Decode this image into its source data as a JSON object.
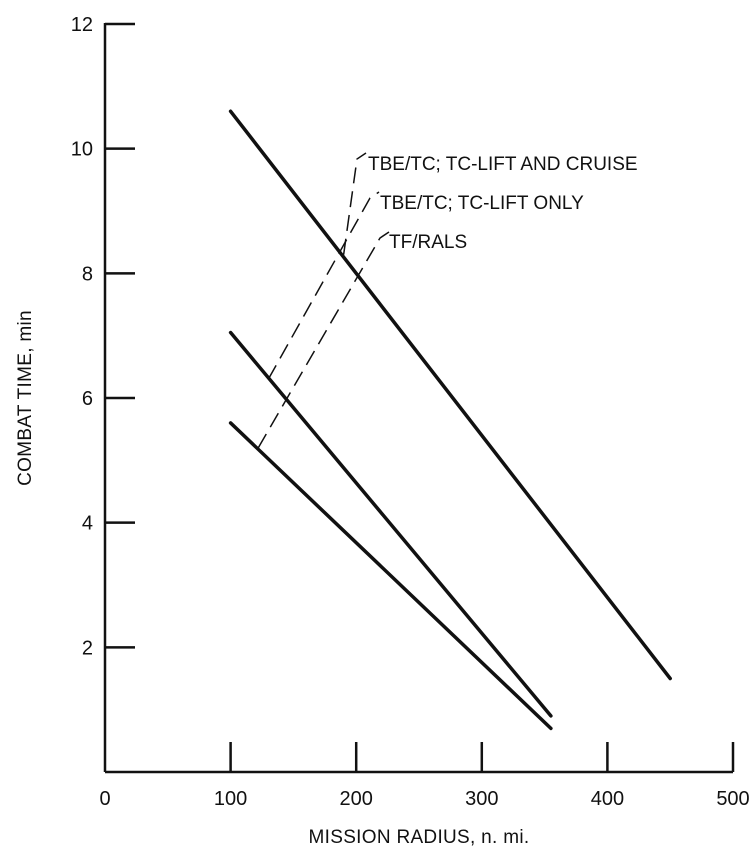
{
  "chart_data": {
    "type": "line",
    "title": "",
    "xlabel": "MISSION RADIUS, n. mi.",
    "ylabel": "COMBAT TIME, min",
    "xlim": [
      0,
      500
    ],
    "ylim": [
      0,
      12
    ],
    "xticks": [
      0,
      100,
      200,
      300,
      400,
      500
    ],
    "yticks": [
      2,
      4,
      6,
      8,
      10,
      12
    ],
    "xtick_labels": [
      "0",
      "100",
      "200",
      "300",
      "400",
      "500"
    ],
    "ytick_labels": [
      "2",
      "4",
      "6",
      "8",
      "10",
      "12"
    ],
    "grid": false,
    "legend": "annotations with dashed leader lines",
    "series": [
      {
        "name": "TBE/TC; TC-LIFT AND CRUISE",
        "x": [
          100,
          450
        ],
        "y": [
          10.6,
          1.5
        ],
        "anchor": [
          190,
          8.3
        ]
      },
      {
        "name": "TBE/TC; TC-LIFT ONLY",
        "x": [
          100,
          355
        ],
        "y": [
          7.05,
          0.9
        ],
        "anchor": [
          130,
          6.3
        ]
      },
      {
        "name": "TF/RALS",
        "x": [
          100,
          355
        ],
        "y": [
          5.6,
          0.7
        ],
        "anchor": [
          122,
          5.2
        ]
      }
    ]
  }
}
